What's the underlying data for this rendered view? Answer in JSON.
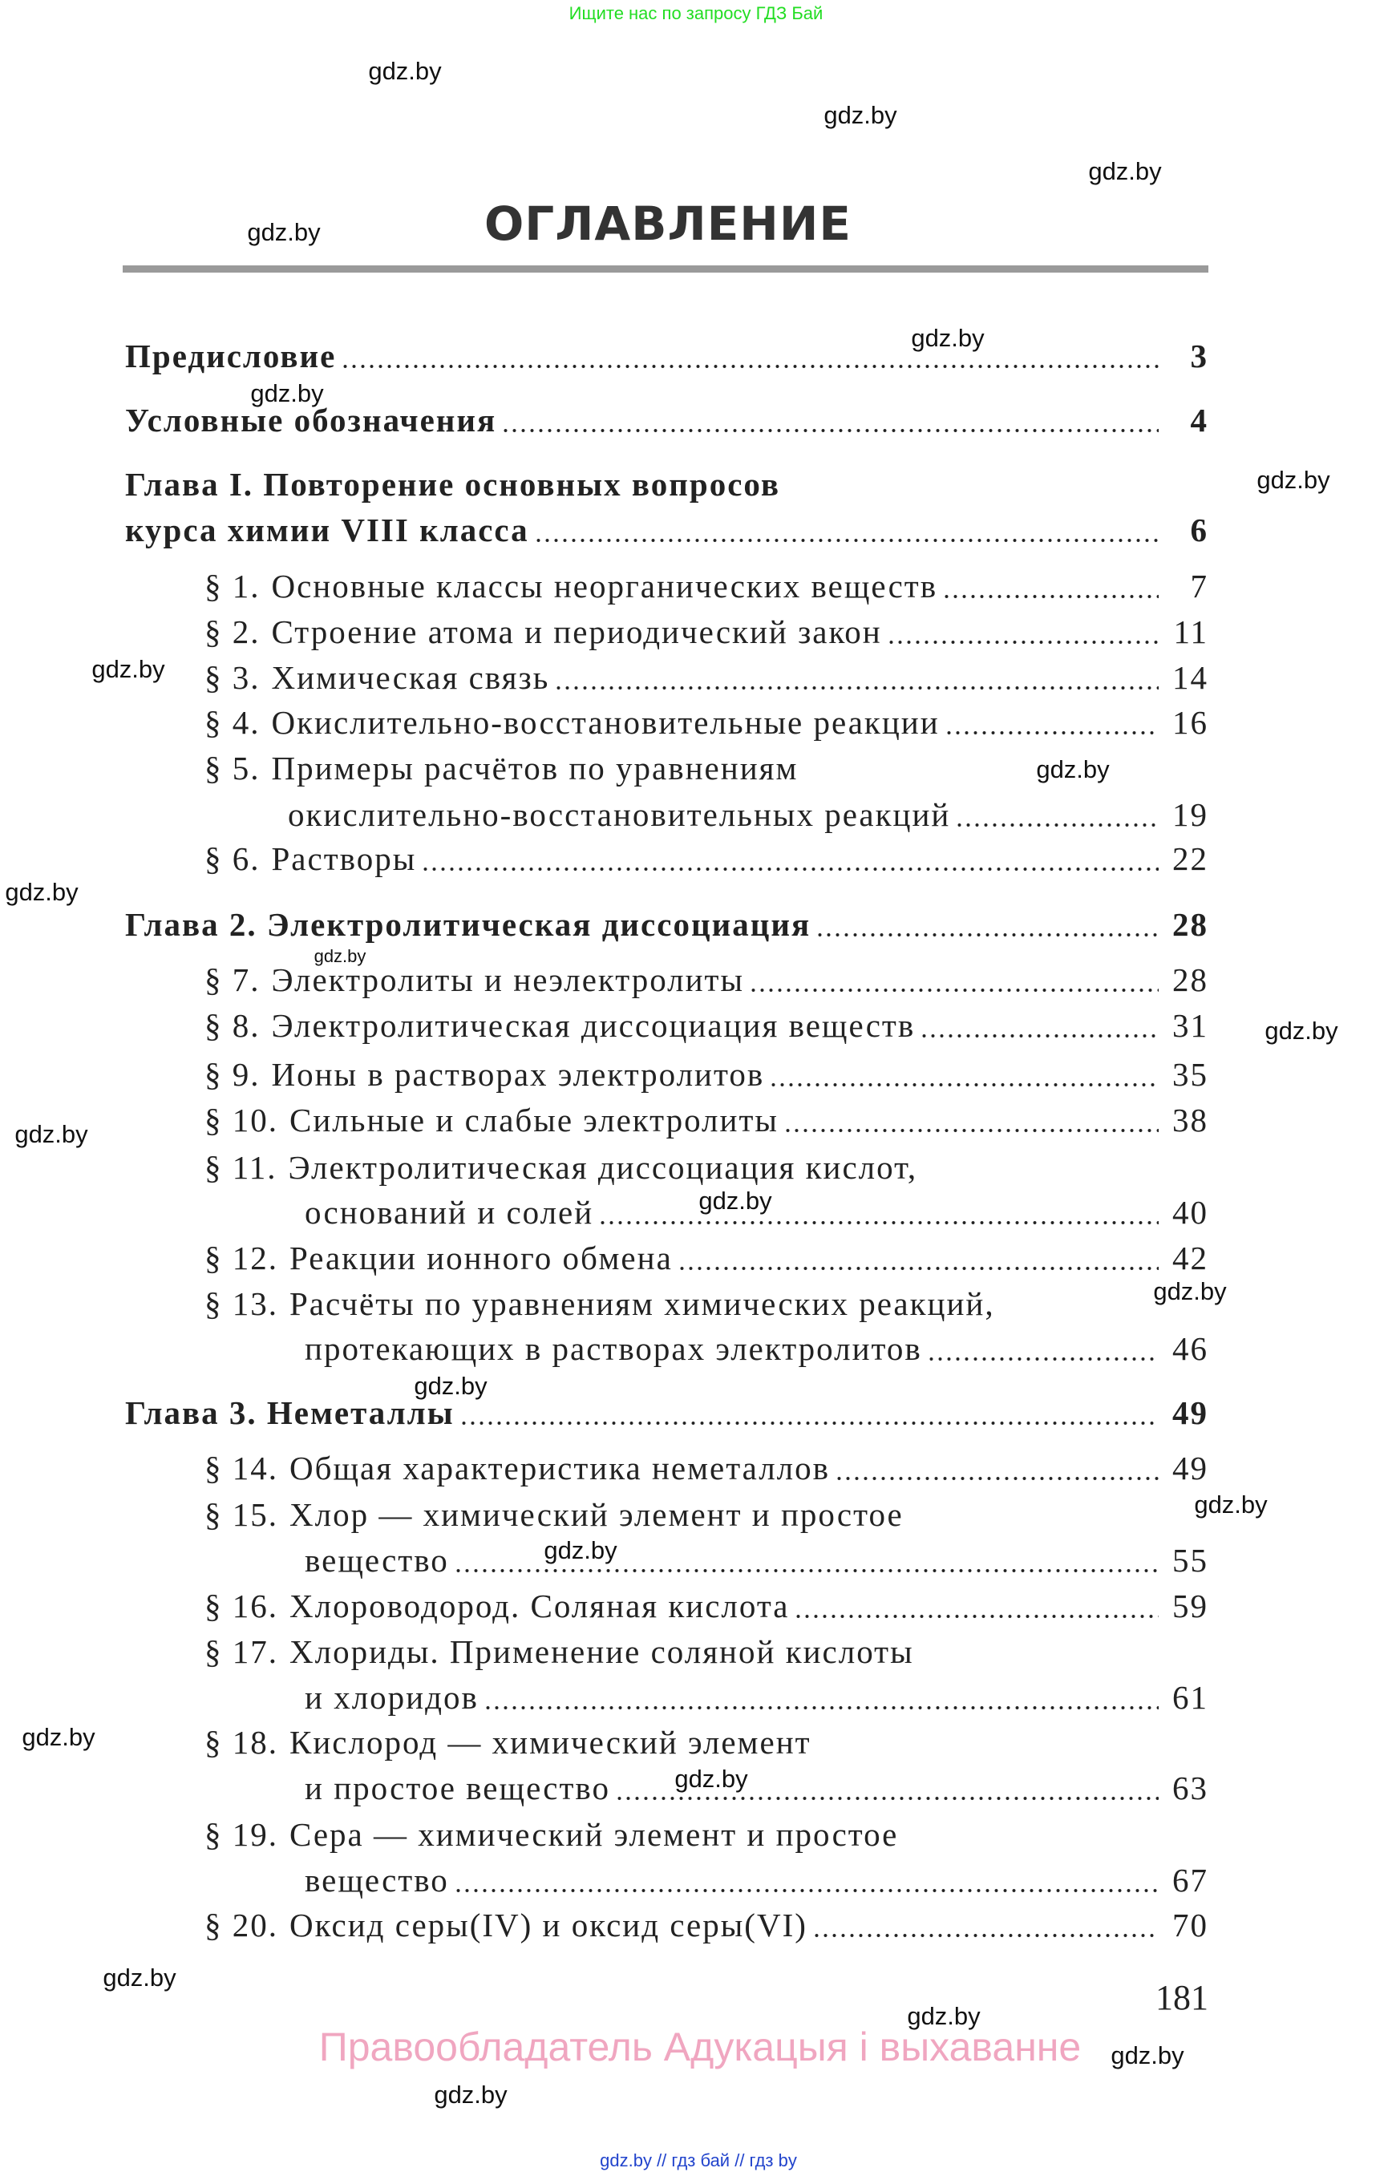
{
  "banner_top": "Ищите нас по запросу ГДЗ Бай",
  "title": "ОГЛАВЛЕНИЕ",
  "toc": [
    {
      "lines": [
        "Предисловие"
      ],
      "page": "3",
      "bold": true
    },
    {
      "lines": [
        "Условные обозначения"
      ],
      "page": "4",
      "bold": true
    },
    {
      "lines": [
        "Глава I. Повторение основных вопросов",
        "курса химии VIII класса"
      ],
      "page": "6",
      "bold": true
    },
    {
      "num": "§ 1.",
      "lines": [
        "Основные классы неорганических веществ"
      ],
      "page": "7"
    },
    {
      "num": "§ 2.",
      "lines": [
        "Строение атома и периодический закон"
      ],
      "page": "11"
    },
    {
      "num": "§ 3.",
      "lines": [
        "Химическая связь"
      ],
      "page": "14"
    },
    {
      "num": "§ 4.",
      "lines": [
        "Окислительно-восстановительные реакции"
      ],
      "page": "16"
    },
    {
      "num": "§ 5.",
      "lines": [
        "Примеры расчётов по уравнениям",
        "окислительно-восстановительных реакций"
      ],
      "page": "19"
    },
    {
      "num": "§ 6.",
      "lines": [
        "Растворы"
      ],
      "page": "22"
    },
    {
      "lines": [
        "Глава 2. Электролитическая диссоциация"
      ],
      "page": "28",
      "bold": true
    },
    {
      "num": "§ 7.",
      "lines": [
        "Электролиты и неэлектролиты"
      ],
      "page": "28"
    },
    {
      "num": "§ 8.",
      "lines": [
        "Электролитическая диссоциация веществ"
      ],
      "page": "31"
    },
    {
      "num": "§ 9.",
      "lines": [
        "Ионы в растворах электролитов"
      ],
      "page": "35"
    },
    {
      "num": "§ 10.",
      "lines": [
        "Сильные и слабые электролиты"
      ],
      "page": "38"
    },
    {
      "num": "§ 11.",
      "lines": [
        "Электролитическая диссоциация кислот,",
        "оснований и солей"
      ],
      "page": "40"
    },
    {
      "num": "§ 12.",
      "lines": [
        "Реакции ионного обмена"
      ],
      "page": "42"
    },
    {
      "num": "§ 13.",
      "lines": [
        "Расчёты по уравнениям химических реакций,",
        "протекающих в растворах электролитов"
      ],
      "page": "46"
    },
    {
      "lines": [
        "Глава 3. Неметаллы"
      ],
      "page": "49",
      "bold": true
    },
    {
      "num": "§ 14.",
      "lines": [
        "Общая характеристика неметаллов"
      ],
      "page": "49"
    },
    {
      "num": "§ 15.",
      "lines": [
        "Хлор — химический элемент и простое",
        "вещество"
      ],
      "page": "55"
    },
    {
      "num": "§ 16.",
      "lines": [
        "Хлороводород. Соляная кислота"
      ],
      "page": "59"
    },
    {
      "num": "§ 17.",
      "lines": [
        "Хлориды. Применение соляной кислоты",
        "и хлоридов"
      ],
      "page": "61"
    },
    {
      "num": "§ 18.",
      "lines": [
        "Кислород — химический элемент",
        "и простое вещество"
      ],
      "page": "63"
    },
    {
      "num": "§ 19.",
      "lines": [
        "Сера — химический элемент и простое",
        "вещество"
      ],
      "page": "67"
    },
    {
      "num": "§ 20.",
      "lines": [
        "Оксид серы(IV) и оксид серы(VI)"
      ],
      "page": "70"
    }
  ],
  "page_number": "181",
  "copyright": "Правообладатель Адукацыя і выхаванне",
  "banner_bottom": "gdz.by  //  гдз бай  //  гдз by",
  "watermark": "gdz.by",
  "colors": {
    "banner_top": "#22dd22",
    "copyright": "#f0a6c0",
    "banner_bottom": "#2244cc",
    "rule": "#9a9a9a"
  }
}
